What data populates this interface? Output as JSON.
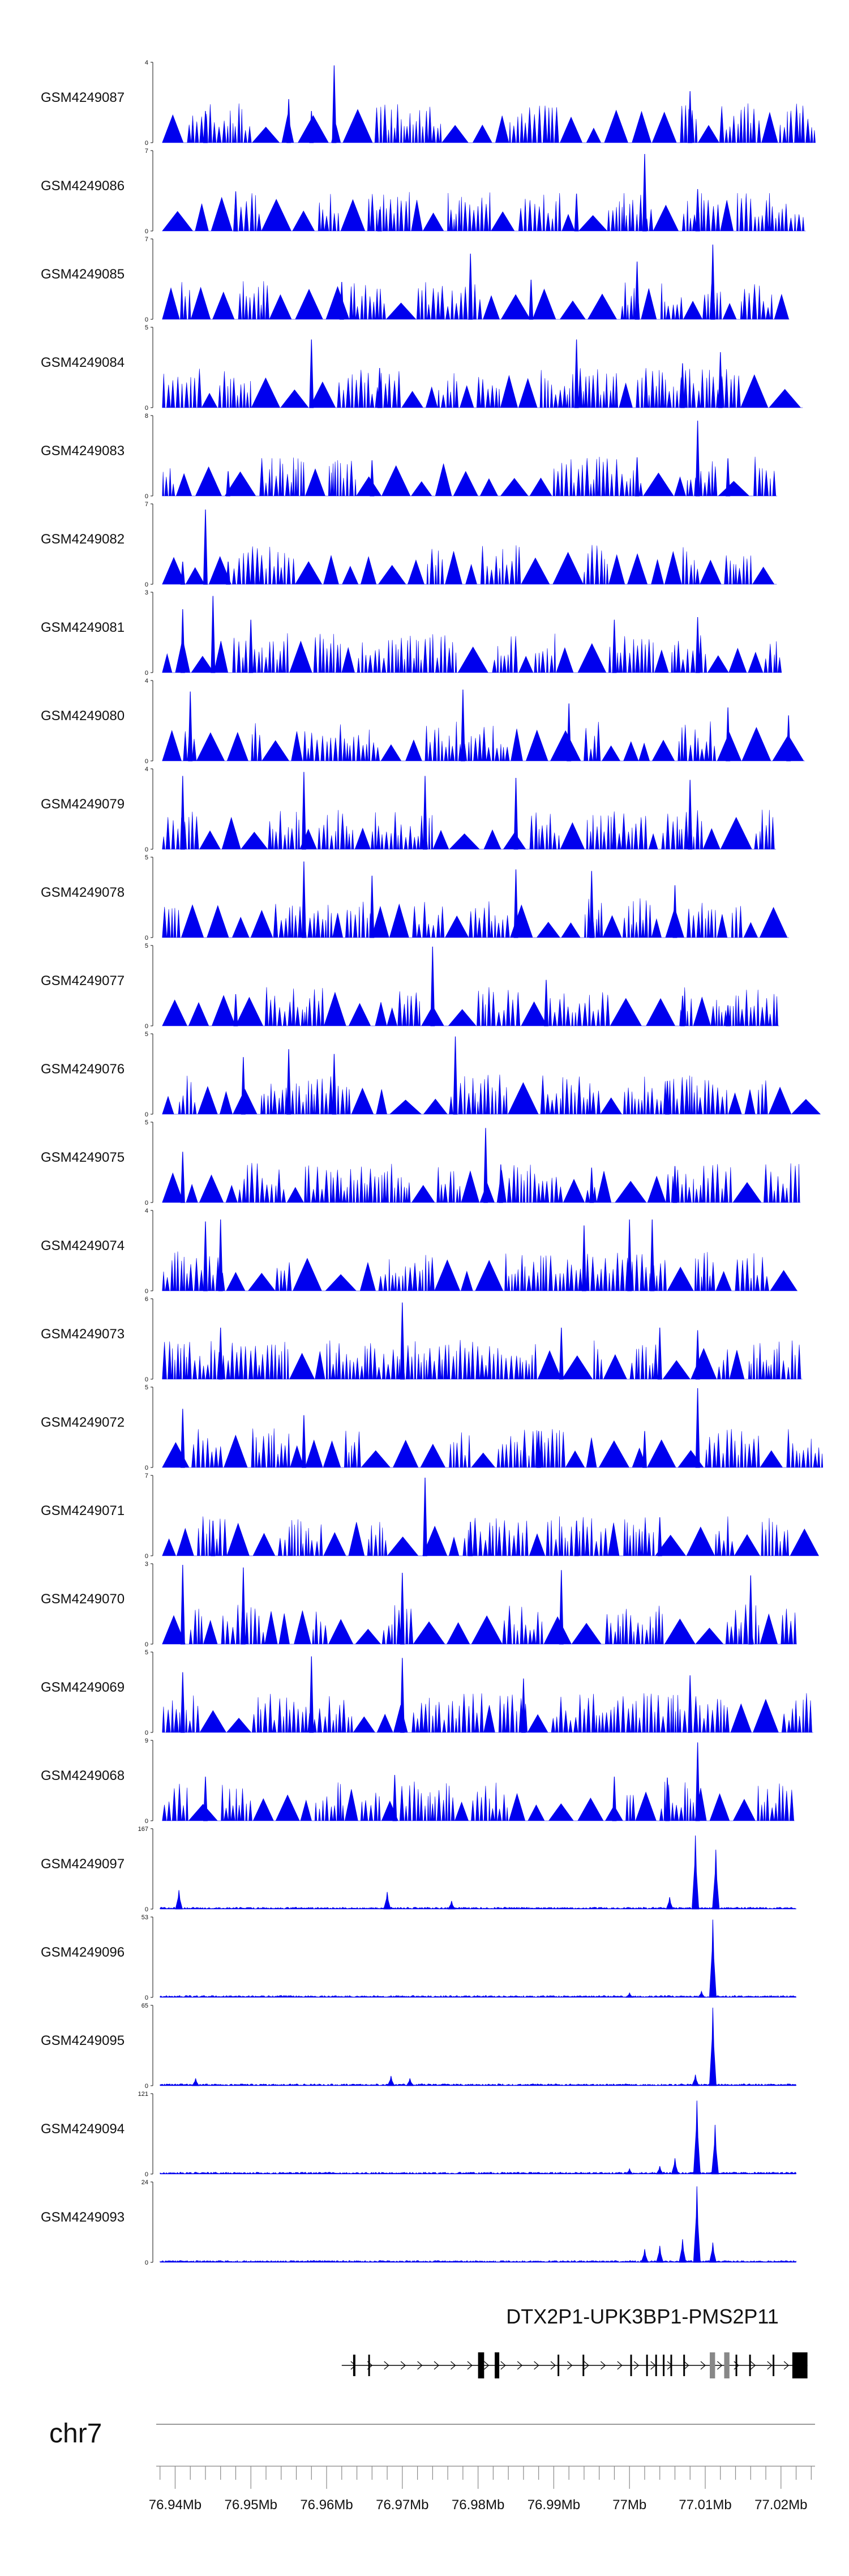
{
  "chart_data": {
    "type": "area",
    "title": "",
    "colors": {
      "signal": "#0000ee",
      "axis": "#111111",
      "gene": "#000000",
      "exon_light": "#888888",
      "ideogram": "#999999"
    },
    "tracks": [
      {
        "name": "GSM4249087",
        "ymax": "4",
        "ymin": "0",
        "kind": "sparse",
        "peaks": [
          {
            "x": 76.944,
            "v": 1.6
          },
          {
            "x": 76.955,
            "v": 2.2
          },
          {
            "x": 76.958,
            "v": 1.6
          },
          {
            "x": 76.961,
            "v": 3.9
          },
          {
            "x": 77.008,
            "v": 2.6
          }
        ]
      },
      {
        "name": "GSM4249086",
        "ymax": "7",
        "ymin": "0",
        "kind": "sparse",
        "peaks": [
          {
            "x": 76.948,
            "v": 3.5
          },
          {
            "x": 76.967,
            "v": 1.9
          },
          {
            "x": 76.993,
            "v": 3.3
          },
          {
            "x": 77.002,
            "v": 6.8
          },
          {
            "x": 77.009,
            "v": 3.7
          }
        ]
      },
      {
        "name": "GSM4249085",
        "ymax": "7",
        "ymin": "0",
        "kind": "sparse",
        "peaks": [
          {
            "x": 76.962,
            "v": 3.3
          },
          {
            "x": 76.979,
            "v": 5.8
          },
          {
            "x": 76.987,
            "v": 3.5
          },
          {
            "x": 77.001,
            "v": 5.1
          },
          {
            "x": 77.011,
            "v": 6.6
          }
        ]
      },
      {
        "name": "GSM4249084",
        "ymax": "5",
        "ymin": "0",
        "kind": "sparse",
        "peaks": [
          {
            "x": 76.958,
            "v": 4.3
          },
          {
            "x": 76.967,
            "v": 2.5
          },
          {
            "x": 76.993,
            "v": 4.3
          },
          {
            "x": 77.007,
            "v": 2.8
          },
          {
            "x": 77.012,
            "v": 3.5
          }
        ]
      },
      {
        "name": "GSM4249083",
        "ymax": "8",
        "ymin": "0",
        "kind": "sparse",
        "peaks": [
          {
            "x": 76.947,
            "v": 2.5
          },
          {
            "x": 76.966,
            "v": 3.6
          },
          {
            "x": 77.001,
            "v": 3.9
          },
          {
            "x": 77.009,
            "v": 7.6
          },
          {
            "x": 77.013,
            "v": 3.8
          }
        ]
      },
      {
        "name": "GSM4249082",
        "ymax": "7",
        "ymin": "0",
        "kind": "sparse",
        "peaks": [
          {
            "x": 76.944,
            "v": 6.6
          },
          {
            "x": 76.941,
            "v": 2.0
          },
          {
            "x": 76.947,
            "v": 2.0
          }
        ]
      },
      {
        "name": "GSM4249081",
        "ymax": "3",
        "ymin": "0",
        "kind": "sparse",
        "peaks": [
          {
            "x": 76.941,
            "v": 2.4
          },
          {
            "x": 76.945,
            "v": 2.9
          },
          {
            "x": 76.95,
            "v": 2.0
          },
          {
            "x": 76.998,
            "v": 2.0
          },
          {
            "x": 77.009,
            "v": 2.1
          }
        ]
      },
      {
        "name": "GSM4249080",
        "ymax": "4",
        "ymin": "0",
        "kind": "sparse",
        "peaks": [
          {
            "x": 76.942,
            "v": 3.5
          },
          {
            "x": 76.978,
            "v": 3.6
          },
          {
            "x": 76.992,
            "v": 2.9
          },
          {
            "x": 77.013,
            "v": 2.7
          },
          {
            "x": 77.021,
            "v": 2.3
          }
        ]
      },
      {
        "name": "GSM4249079",
        "ymax": "4",
        "ymin": "0",
        "kind": "sparse",
        "peaks": [
          {
            "x": 76.941,
            "v": 3.7
          },
          {
            "x": 76.957,
            "v": 3.9
          },
          {
            "x": 76.973,
            "v": 3.7
          },
          {
            "x": 76.985,
            "v": 3.6
          },
          {
            "x": 77.008,
            "v": 3.5
          }
        ]
      },
      {
        "name": "GSM4249078",
        "ymax": "5",
        "ymin": "0",
        "kind": "sparse",
        "peaks": [
          {
            "x": 76.957,
            "v": 4.8
          },
          {
            "x": 76.966,
            "v": 3.9
          },
          {
            "x": 76.985,
            "v": 4.3
          },
          {
            "x": 76.995,
            "v": 4.2
          },
          {
            "x": 77.006,
            "v": 3.3
          }
        ]
      },
      {
        "name": "GSM4249077",
        "ymax": "5",
        "ymin": "0",
        "kind": "sparse",
        "peaks": [
          {
            "x": 76.948,
            "v": 2.0
          },
          {
            "x": 76.974,
            "v": 5.0
          },
          {
            "x": 76.989,
            "v": 2.9
          },
          {
            "x": 77.007,
            "v": 1.9
          },
          {
            "x": 77.013,
            "v": 1.3
          }
        ]
      },
      {
        "name": "GSM4249076",
        "ymax": "5",
        "ymin": "0",
        "kind": "sparse",
        "peaks": [
          {
            "x": 76.949,
            "v": 3.6
          },
          {
            "x": 76.955,
            "v": 4.1
          },
          {
            "x": 76.961,
            "v": 3.8
          },
          {
            "x": 76.977,
            "v": 4.9
          },
          {
            "x": 77.005,
            "v": 2.1
          }
        ]
      },
      {
        "name": "GSM4249075",
        "ymax": "5",
        "ymin": "0",
        "kind": "sparse",
        "peaks": [
          {
            "x": 76.941,
            "v": 3.2
          },
          {
            "x": 76.981,
            "v": 4.7
          },
          {
            "x": 76.983,
            "v": 2.4
          },
          {
            "x": 76.995,
            "v": 2.2
          },
          {
            "x": 77.006,
            "v": 2.3
          }
        ]
      },
      {
        "name": "GSM4249074",
        "ymax": "4",
        "ymin": "0",
        "kind": "sparse",
        "peaks": [
          {
            "x": 76.944,
            "v": 3.5
          },
          {
            "x": 76.946,
            "v": 3.6
          },
          {
            "x": 76.994,
            "v": 3.3
          },
          {
            "x": 77.0,
            "v": 3.6
          },
          {
            "x": 77.003,
            "v": 3.6
          }
        ]
      },
      {
        "name": "GSM4249073",
        "ymax": "6",
        "ymin": "0",
        "kind": "sparse",
        "peaks": [
          {
            "x": 76.946,
            "v": 3.9
          },
          {
            "x": 76.97,
            "v": 5.8
          },
          {
            "x": 76.991,
            "v": 3.9
          },
          {
            "x": 77.004,
            "v": 3.9
          },
          {
            "x": 77.009,
            "v": 3.7
          }
        ]
      },
      {
        "name": "GSM4249072",
        "ymax": "5",
        "ymin": "0",
        "kind": "sparse",
        "peaks": [
          {
            "x": 76.941,
            "v": 3.7
          },
          {
            "x": 76.957,
            "v": 3.3
          },
          {
            "x": 76.988,
            "v": 2.3
          },
          {
            "x": 77.002,
            "v": 2.3
          },
          {
            "x": 77.009,
            "v": 5.0
          }
        ]
      },
      {
        "name": "GSM4249071",
        "ymax": "7",
        "ymin": "0",
        "kind": "sparse",
        "peaks": [
          {
            "x": 76.945,
            "v": 3.1
          },
          {
            "x": 76.973,
            "v": 6.9
          },
          {
            "x": 76.979,
            "v": 3.0
          },
          {
            "x": 76.993,
            "v": 3.1
          },
          {
            "x": 77.004,
            "v": 3.4
          }
        ]
      },
      {
        "name": "GSM4249070",
        "ymax": "3",
        "ymin": "0",
        "kind": "sparse",
        "peaks": [
          {
            "x": 76.941,
            "v": 3.0
          },
          {
            "x": 76.949,
            "v": 2.9
          },
          {
            "x": 76.97,
            "v": 2.7
          },
          {
            "x": 76.991,
            "v": 2.8
          },
          {
            "x": 77.016,
            "v": 2.6
          }
        ]
      },
      {
        "name": "GSM4249069",
        "ymax": "5",
        "ymin": "0",
        "kind": "sparse",
        "peaks": [
          {
            "x": 76.941,
            "v": 3.8
          },
          {
            "x": 76.958,
            "v": 4.8
          },
          {
            "x": 76.97,
            "v": 4.7
          },
          {
            "x": 76.986,
            "v": 3.4
          },
          {
            "x": 77.008,
            "v": 3.6
          }
        ]
      },
      {
        "name": "GSM4249068",
        "ymax": "9",
        "ymin": "0",
        "kind": "sparse",
        "peaks": [
          {
            "x": 76.944,
            "v": 5.0
          },
          {
            "x": 76.969,
            "v": 5.2
          },
          {
            "x": 76.998,
            "v": 5.0
          },
          {
            "x": 77.005,
            "v": 4.9
          },
          {
            "x": 77.009,
            "v": 8.9
          }
        ]
      },
      {
        "name": "GSM4249097",
        "ymax": "167",
        "ymin": "0",
        "kind": "dense",
        "peaks": [
          {
            "x": 76.9405,
            "v": 40
          },
          {
            "x": 76.968,
            "v": 36
          },
          {
            "x": 76.9765,
            "v": 17
          },
          {
            "x": 77.0087,
            "v": 155
          },
          {
            "x": 77.0114,
            "v": 125
          },
          {
            "x": 77.0053,
            "v": 25
          }
        ]
      },
      {
        "name": "GSM4249096",
        "ymax": "53",
        "ymin": "0",
        "kind": "dense",
        "peaks": [
          {
            "x": 77.011,
            "v": 52
          },
          {
            "x": 77.0095,
            "v": 4
          },
          {
            "x": 77.0,
            "v": 3
          }
        ]
      },
      {
        "name": "GSM4249095",
        "ymax": "65",
        "ymin": "0",
        "kind": "dense",
        "peaks": [
          {
            "x": 76.9427,
            "v": 6
          },
          {
            "x": 76.9685,
            "v": 8
          },
          {
            "x": 76.971,
            "v": 6
          },
          {
            "x": 77.0087,
            "v": 9
          },
          {
            "x": 77.011,
            "v": 64
          }
        ]
      },
      {
        "name": "GSM4249094",
        "ymax": "121",
        "ymin": "0",
        "kind": "dense",
        "peaks": [
          {
            "x": 77.0089,
            "v": 112
          },
          {
            "x": 77.0113,
            "v": 75
          },
          {
            "x": 77.006,
            "v": 24
          },
          {
            "x": 77.004,
            "v": 12
          },
          {
            "x": 77.0,
            "v": 8
          }
        ]
      },
      {
        "name": "GSM4249093",
        "ymax": "24",
        "ymin": "0",
        "kind": "dense",
        "peaks": [
          {
            "x": 77.0089,
            "v": 23
          },
          {
            "x": 77.007,
            "v": 7
          },
          {
            "x": 77.004,
            "v": 5
          },
          {
            "x": 77.002,
            "v": 4
          },
          {
            "x": 77.011,
            "v": 6
          }
        ]
      }
    ],
    "gene": {
      "label": "DTX2P1-UPK3BP1-PMS2P11",
      "start": 76.962,
      "end": 77.0235,
      "exons": [
        {
          "x": 76.9635,
          "w": 0.0003,
          "tone": "dark"
        },
        {
          "x": 76.9655,
          "w": 0.0002,
          "tone": "dark"
        },
        {
          "x": 76.98,
          "w": 0.0008,
          "tone": "dark"
        },
        {
          "x": 76.9822,
          "w": 0.0006,
          "tone": "dark"
        },
        {
          "x": 76.9905,
          "w": 0.0002,
          "tone": "dark"
        },
        {
          "x": 76.9938,
          "w": 0.0002,
          "tone": "dark"
        },
        {
          "x": 77.0001,
          "w": 0.0002,
          "tone": "dark"
        },
        {
          "x": 77.0022,
          "w": 0.0002,
          "tone": "dark"
        },
        {
          "x": 77.0034,
          "w": 0.0002,
          "tone": "dark"
        },
        {
          "x": 77.0044,
          "w": 0.0002,
          "tone": "dark"
        },
        {
          "x": 77.0054,
          "w": 0.0002,
          "tone": "dark"
        },
        {
          "x": 77.0071,
          "w": 0.0002,
          "tone": "dark"
        },
        {
          "x": 77.0106,
          "w": 0.0007,
          "tone": "light"
        },
        {
          "x": 77.0125,
          "w": 0.0007,
          "tone": "light"
        },
        {
          "x": 77.014,
          "w": 0.0002,
          "tone": "dark"
        },
        {
          "x": 77.0158,
          "w": 0.0002,
          "tone": "dark"
        },
        {
          "x": 77.0189,
          "w": 0.0002,
          "tone": "dark"
        },
        {
          "x": 77.0215,
          "w": 0.002,
          "tone": "dark"
        }
      ]
    },
    "chromosome": "chr7",
    "x_axis": {
      "xlim": [
        76.9375,
        77.0245
      ],
      "ticks": [
        "76.94Mb",
        "76.95Mb",
        "76.96Mb",
        "76.97Mb",
        "76.98Mb",
        "76.99Mb",
        "77Mb",
        "77.01Mb",
        "77.02Mb"
      ],
      "tick_values": [
        76.94,
        76.95,
        76.96,
        76.97,
        76.98,
        76.99,
        77.0,
        77.01,
        77.02
      ],
      "minor_step": 0.002
    }
  }
}
